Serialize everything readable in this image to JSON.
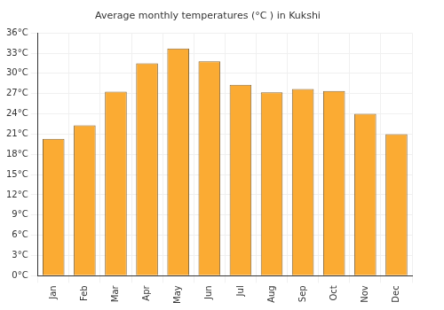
{
  "chart_data": {
    "type": "bar",
    "title": "Average monthly temperatures (°C ) in Kukshi",
    "categories": [
      "Jan",
      "Feb",
      "Mar",
      "Apr",
      "May",
      "Jun",
      "Jul",
      "Aug",
      "Sep",
      "Oct",
      "Nov",
      "Dec"
    ],
    "values": [
      20.3,
      22.3,
      27.3,
      31.5,
      33.7,
      31.8,
      28.3,
      27.2,
      27.7,
      27.4,
      24.0,
      21.0
    ],
    "color": "#fbab33",
    "ylim": [
      0,
      36
    ],
    "yticks": [
      {
        "value": 0,
        "label": "0°C"
      },
      {
        "value": 3,
        "label": "3°C"
      },
      {
        "value": 6,
        "label": "6°C"
      },
      {
        "value": 9,
        "label": "9°C"
      },
      {
        "value": 12,
        "label": "12°C"
      },
      {
        "value": 15,
        "label": "15°C"
      },
      {
        "value": 18,
        "label": "18°C"
      },
      {
        "value": 21,
        "label": "21°C"
      },
      {
        "value": 24,
        "label": "24°C"
      },
      {
        "value": 27,
        "label": "27°C"
      },
      {
        "value": 30,
        "label": "30°C"
      },
      {
        "value": 33,
        "label": "33°C"
      },
      {
        "value": 36,
        "label": "36°C"
      }
    ],
    "grid": true
  }
}
